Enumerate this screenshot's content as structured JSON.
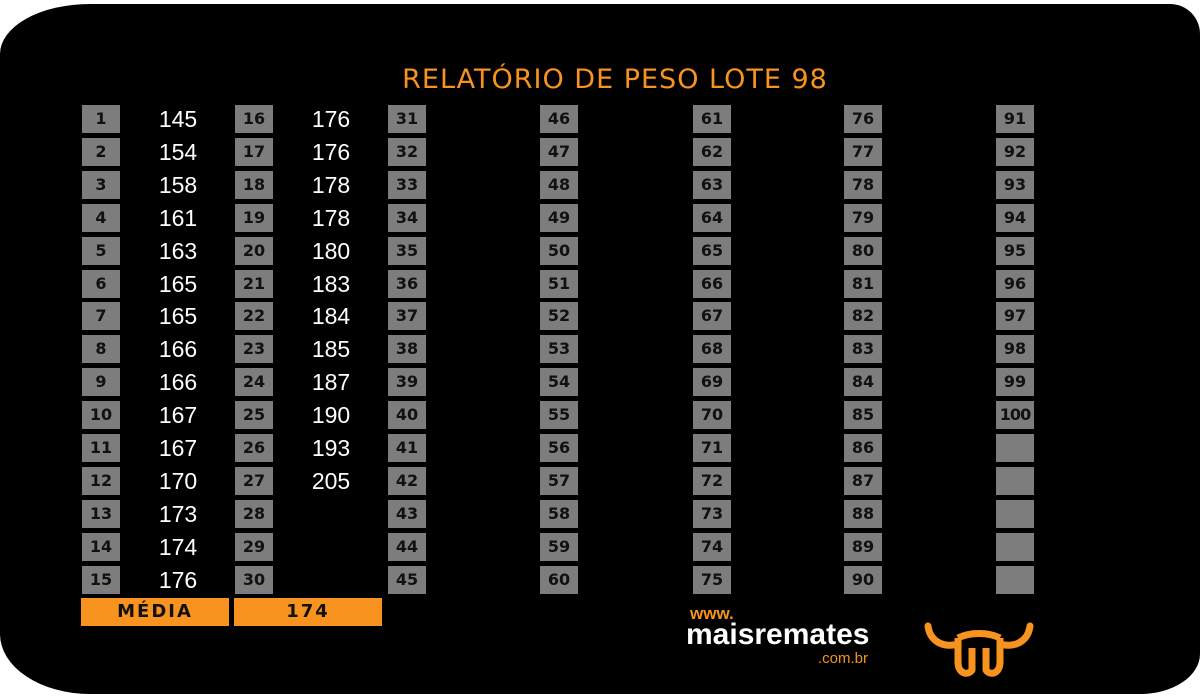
{
  "title": "RELATÓRIO DE PESO LOTE 98",
  "columns": [
    {
      "numbers": [
        1,
        2,
        3,
        4,
        5,
        6,
        7,
        8,
        9,
        10,
        11,
        12,
        13,
        14,
        15
      ],
      "weights": [
        145,
        154,
        158,
        161,
        163,
        165,
        165,
        166,
        166,
        167,
        167,
        170,
        173,
        174,
        176
      ]
    },
    {
      "numbers": [
        16,
        17,
        18,
        19,
        20,
        21,
        22,
        23,
        24,
        25,
        26,
        27,
        28,
        29,
        30
      ],
      "weights": [
        176,
        176,
        178,
        178,
        180,
        183,
        184,
        185,
        187,
        190,
        193,
        205
      ]
    },
    {
      "numbers": [
        31,
        32,
        33,
        34,
        35,
        36,
        37,
        38,
        39,
        40,
        41,
        42,
        43,
        44,
        45
      ],
      "weights": []
    },
    {
      "numbers": [
        46,
        47,
        48,
        49,
        50,
        51,
        52,
        53,
        54,
        55,
        56,
        57,
        58,
        59,
        60
      ],
      "weights": []
    },
    {
      "numbers": [
        61,
        62,
        63,
        64,
        65,
        66,
        67,
        68,
        69,
        70,
        71,
        72,
        73,
        74,
        75
      ],
      "weights": []
    },
    {
      "numbers": [
        76,
        77,
        78,
        79,
        80,
        81,
        82,
        83,
        84,
        85,
        86,
        87,
        88,
        89,
        90
      ],
      "weights": []
    },
    {
      "numbers": [
        91,
        92,
        93,
        94,
        95,
        96,
        97,
        98,
        99,
        100,
        "",
        "",
        "",
        "",
        ""
      ],
      "weights": []
    }
  ],
  "summary": {
    "label": "MÉDIA",
    "value": "174"
  },
  "logo": {
    "prefix": "www.",
    "name": "maisremates",
    "suffix": ".com.br",
    "icon": "bull-head-icon"
  },
  "colors": {
    "accent": "#f7931e",
    "cell": "#7d7d7d",
    "background": "#000000"
  }
}
